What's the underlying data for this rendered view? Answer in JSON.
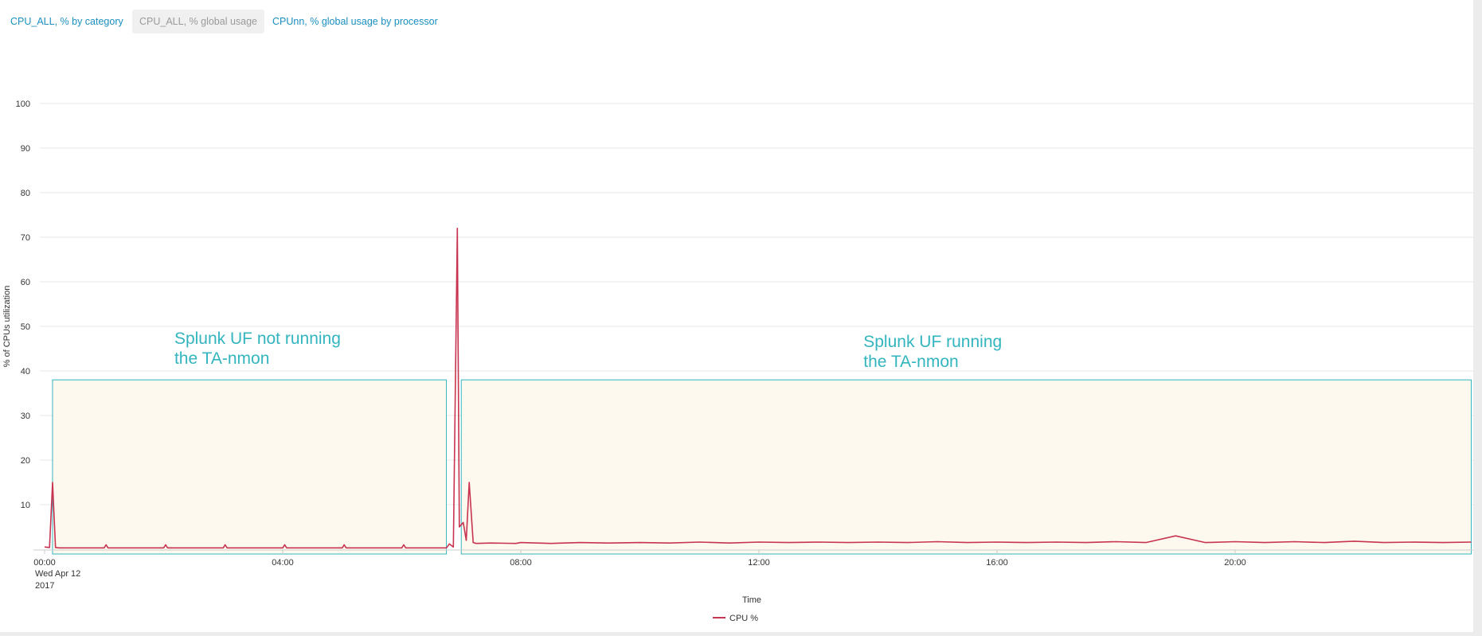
{
  "tabs": [
    {
      "label": "CPU_ALL, % by category",
      "active": false
    },
    {
      "label": "CPU_ALL, % global usage",
      "active": true
    },
    {
      "label": "CPUnn, % global usage by processor",
      "active": false
    }
  ],
  "colors": {
    "series": "#c8334f",
    "annotation": "#33b5bf",
    "annotation_fill": "#fdf9ee",
    "grid": "#e9e9e9",
    "tab_link": "#1a8fc0"
  },
  "annotations": [
    {
      "text": [
        "Splunk UF not running",
        "the TA-nmon"
      ],
      "x_start": "00:08",
      "x_end": "06:45",
      "y_top": 38
    },
    {
      "text": [
        "Splunk UF running",
        "the TA-nmon"
      ],
      "x_start": "07:00",
      "x_end": "23:58",
      "y_top": 38
    }
  ],
  "chart_data": {
    "type": "line",
    "title": "",
    "xlabel": "Time",
    "ylabel": "% of CPUs utilization",
    "ylim": [
      0,
      100
    ],
    "yticks": [
      10,
      20,
      30,
      40,
      50,
      60,
      70,
      80,
      90,
      100
    ],
    "xlim": [
      "00:00",
      "24:00"
    ],
    "xticks": [
      "00:00",
      "04:00",
      "08:00",
      "12:00",
      "16:00",
      "20:00"
    ],
    "x_start_date": [
      "Wed Apr 12",
      "2017"
    ],
    "grid": true,
    "legend": "bottom-center",
    "series": [
      {
        "name": "CPU %",
        "x": [
          "00:00",
          "00:05",
          "00:08",
          "00:11",
          "00:15",
          "00:30",
          "01:00",
          "01:02",
          "01:04",
          "01:30",
          "02:00",
          "02:02",
          "02:04",
          "02:30",
          "03:00",
          "03:02",
          "03:04",
          "03:30",
          "04:00",
          "04:02",
          "04:04",
          "04:30",
          "05:00",
          "05:02",
          "05:04",
          "05:30",
          "06:00",
          "06:02",
          "06:04",
          "06:30",
          "06:45",
          "06:48",
          "06:52",
          "06:56",
          "06:58",
          "07:02",
          "07:05",
          "07:08",
          "07:12",
          "07:15",
          "07:30",
          "07:55",
          "08:00",
          "08:30",
          "09:00",
          "09:30",
          "10:00",
          "10:30",
          "11:00",
          "11:30",
          "12:00",
          "12:30",
          "13:00",
          "13:30",
          "14:00",
          "14:30",
          "15:00",
          "15:30",
          "16:00",
          "16:30",
          "17:00",
          "17:30",
          "18:00",
          "18:30",
          "19:00",
          "19:30",
          "20:00",
          "20:30",
          "21:00",
          "21:30",
          "22:00",
          "22:30",
          "23:00",
          "23:30",
          "23:58"
        ],
        "y": [
          0.5,
          0.4,
          15,
          0.4,
          0.3,
          0.3,
          0.3,
          1.0,
          0.3,
          0.3,
          0.3,
          1.0,
          0.3,
          0.3,
          0.3,
          1.0,
          0.3,
          0.3,
          0.3,
          1.0,
          0.3,
          0.3,
          0.3,
          1.0,
          0.3,
          0.3,
          0.3,
          1.0,
          0.3,
          0.3,
          0.3,
          1.2,
          0.5,
          72,
          5,
          6,
          2,
          15,
          1.5,
          1.3,
          1.4,
          1.3,
          1.5,
          1.3,
          1.5,
          1.4,
          1.5,
          1.4,
          1.6,
          1.4,
          1.6,
          1.5,
          1.6,
          1.5,
          1.6,
          1.5,
          1.7,
          1.5,
          1.6,
          1.5,
          1.6,
          1.5,
          1.7,
          1.5,
          3.0,
          1.5,
          1.7,
          1.5,
          1.7,
          1.5,
          1.8,
          1.5,
          1.6,
          1.5,
          1.6
        ]
      }
    ]
  }
}
